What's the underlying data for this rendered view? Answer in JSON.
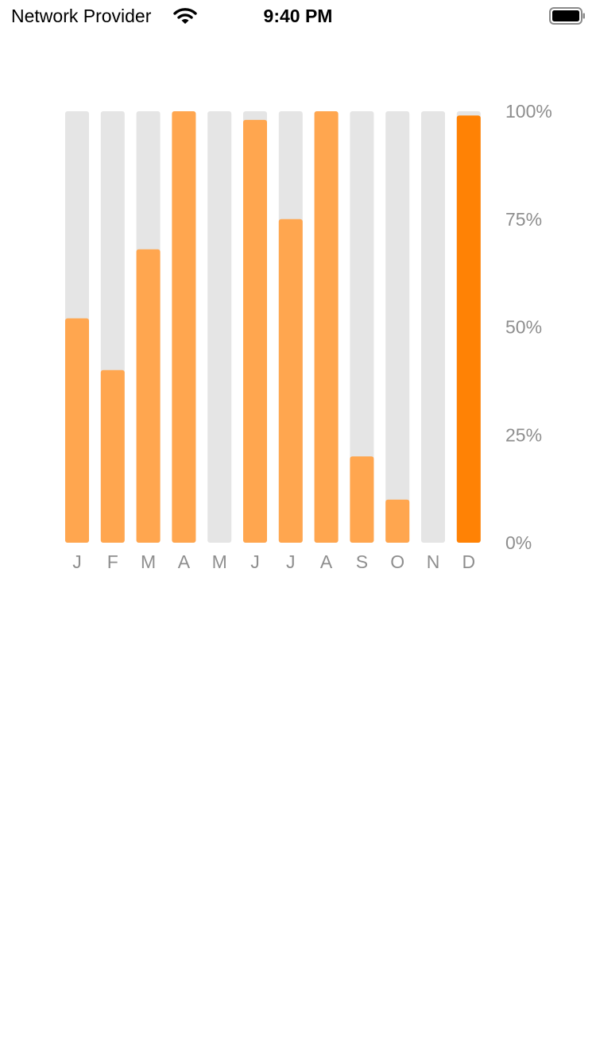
{
  "status_bar": {
    "carrier": "Network Provider",
    "time": "9:40 PM",
    "wifi_icon": "wifi-icon",
    "battery_icon": "battery-icon"
  },
  "colors": {
    "track": "#e5e5e5",
    "bar": "#ffa64f",
    "bar_highlight": "#ff8205",
    "tick_text": "#8e8e8e"
  },
  "chart_data": {
    "type": "bar",
    "categories": [
      "J",
      "F",
      "M",
      "A",
      "M",
      "J",
      "J",
      "A",
      "S",
      "O",
      "N",
      "D"
    ],
    "values": [
      52,
      40,
      68,
      100,
      0,
      98,
      75,
      100,
      20,
      10,
      0,
      99
    ],
    "highlight_index": 11,
    "ylim": [
      0,
      100
    ],
    "yticks": [
      "0%",
      "25%",
      "50%",
      "75%",
      "100%"
    ],
    "ytick_values": [
      0,
      25,
      50,
      75,
      100
    ],
    "y_axis_position": "right",
    "grid": false
  }
}
